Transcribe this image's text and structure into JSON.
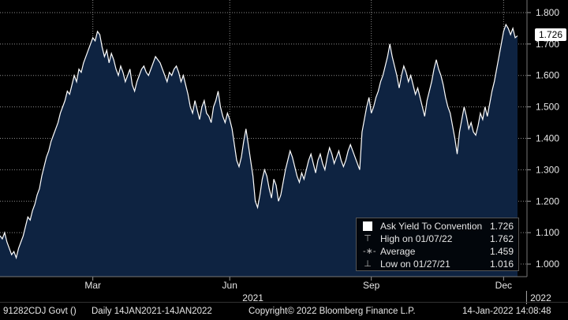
{
  "chart_data": {
    "type": "area",
    "ylim": [
      0.96,
      1.84
    ],
    "yticks": [
      "1.000",
      "1.100",
      "1.200",
      "1.300",
      "1.400",
      "1.500",
      "1.600",
      "1.700",
      "1.800"
    ],
    "ytick_values": [
      1.0,
      1.1,
      1.2,
      1.3,
      1.4,
      1.5,
      1.6,
      1.7,
      1.8
    ],
    "xticks": [
      "Mar",
      "Jun",
      "Sep",
      "Dec"
    ],
    "xtick_index": [
      40,
      99,
      160,
      217
    ],
    "year_labels": [
      "2021",
      "2022"
    ],
    "year_index": [
      109,
      233
    ],
    "values": [
      1.09,
      1.08,
      1.1,
      1.07,
      1.05,
      1.03,
      1.04,
      1.02,
      1.05,
      1.07,
      1.09,
      1.12,
      1.15,
      1.14,
      1.17,
      1.19,
      1.22,
      1.24,
      1.28,
      1.31,
      1.34,
      1.36,
      1.39,
      1.41,
      1.43,
      1.45,
      1.48,
      1.5,
      1.52,
      1.55,
      1.54,
      1.57,
      1.6,
      1.58,
      1.62,
      1.61,
      1.64,
      1.66,
      1.68,
      1.7,
      1.72,
      1.71,
      1.74,
      1.73,
      1.69,
      1.66,
      1.68,
      1.64,
      1.67,
      1.65,
      1.62,
      1.6,
      1.63,
      1.61,
      1.58,
      1.6,
      1.62,
      1.57,
      1.55,
      1.58,
      1.6,
      1.62,
      1.63,
      1.61,
      1.6,
      1.62,
      1.64,
      1.66,
      1.65,
      1.64,
      1.62,
      1.6,
      1.58,
      1.61,
      1.6,
      1.62,
      1.63,
      1.61,
      1.58,
      1.6,
      1.57,
      1.54,
      1.5,
      1.48,
      1.52,
      1.49,
      1.46,
      1.5,
      1.52,
      1.48,
      1.47,
      1.45,
      1.5,
      1.52,
      1.55,
      1.5,
      1.47,
      1.45,
      1.48,
      1.46,
      1.43,
      1.38,
      1.33,
      1.31,
      1.34,
      1.39,
      1.43,
      1.38,
      1.33,
      1.28,
      1.2,
      1.18,
      1.22,
      1.27,
      1.3,
      1.28,
      1.24,
      1.21,
      1.27,
      1.25,
      1.2,
      1.22,
      1.26,
      1.3,
      1.33,
      1.36,
      1.34,
      1.31,
      1.28,
      1.26,
      1.29,
      1.27,
      1.3,
      1.33,
      1.35,
      1.32,
      1.29,
      1.33,
      1.35,
      1.32,
      1.3,
      1.34,
      1.37,
      1.35,
      1.32,
      1.34,
      1.36,
      1.33,
      1.31,
      1.33,
      1.36,
      1.38,
      1.36,
      1.34,
      1.32,
      1.3,
      1.42,
      1.46,
      1.5,
      1.53,
      1.48,
      1.5,
      1.53,
      1.55,
      1.58,
      1.6,
      1.63,
      1.66,
      1.7,
      1.66,
      1.63,
      1.6,
      1.56,
      1.6,
      1.63,
      1.61,
      1.58,
      1.6,
      1.57,
      1.54,
      1.56,
      1.53,
      1.5,
      1.47,
      1.52,
      1.55,
      1.58,
      1.62,
      1.65,
      1.62,
      1.6,
      1.57,
      1.53,
      1.5,
      1.48,
      1.44,
      1.4,
      1.35,
      1.42,
      1.46,
      1.5,
      1.47,
      1.43,
      1.45,
      1.42,
      1.41,
      1.44,
      1.48,
      1.46,
      1.5,
      1.47,
      1.51,
      1.55,
      1.58,
      1.62,
      1.66,
      1.7,
      1.74,
      1.762,
      1.75,
      1.73,
      1.75,
      1.72,
      1.726
    ]
  },
  "legend": {
    "series": {
      "label": "Ask Yield To Convention",
      "value": "1.726"
    },
    "high": {
      "label": "High on 01/07/22",
      "value": "1.762"
    },
    "average": {
      "label": "Average",
      "value": "1.459"
    },
    "low": {
      "label": "Low on 01/27/21",
      "value": "1.016"
    }
  },
  "last_value": "1.726",
  "footer": {
    "ticker": "91282CDJ Govt ()",
    "range": "Daily 14JAN2021-14JAN2022",
    "copyright": "Copyright© 2022 Bloomberg Finance L.P.",
    "timestamp": "14-Jan-2022 14:08:48"
  },
  "colors": {
    "fill": "#0e2341",
    "line": "#ffffff",
    "grid": "#8c8c8c",
    "background": "#000000"
  }
}
